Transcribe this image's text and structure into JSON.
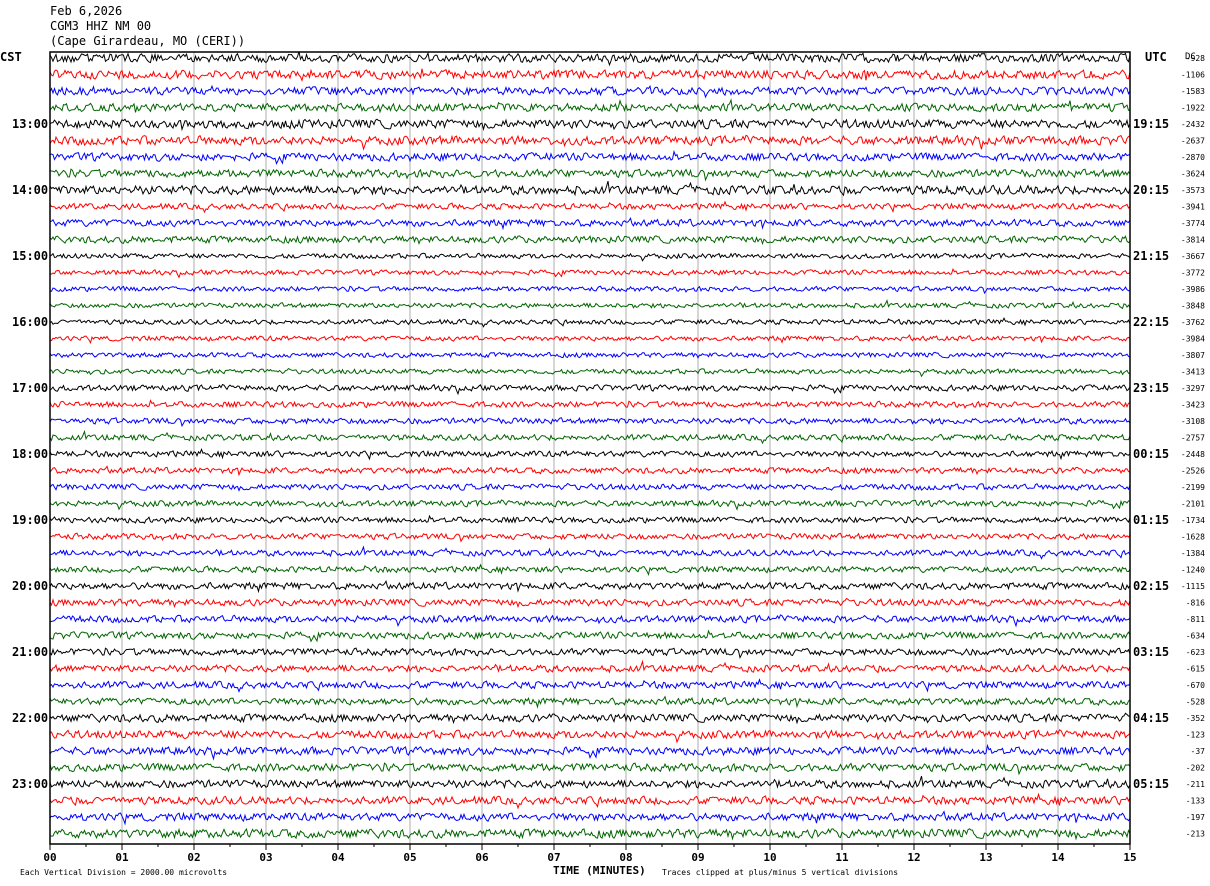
{
  "header": {
    "date": "Feb 6,2026",
    "station": "CGM3 HHZ NM 00",
    "location": "(Cape Girardeau, MO (CERI))"
  },
  "footer": {
    "scale_note": "Each Vertical Division = 2000.00 microvolts",
    "clip_note": "Traces clipped at plus/minus 5 vertical divisions"
  },
  "chart_data": {
    "type": "line",
    "title": "",
    "xlabel": "TIME (MINUTES)",
    "ylabel": "",
    "left_axis_label": "CST",
    "right_axis_label": "UTC",
    "dc_header": "DC",
    "xlim": [
      0,
      15
    ],
    "x_ticks": [
      "00",
      "01",
      "02",
      "03",
      "04",
      "05",
      "06",
      "07",
      "08",
      "09",
      "10",
      "11",
      "12",
      "13",
      "14",
      "15"
    ],
    "left_hour_labels": [
      "13:00",
      "14:00",
      "15:00",
      "16:00",
      "17:00",
      "18:00",
      "19:00",
      "20:00",
      "21:00",
      "22:00",
      "23:00"
    ],
    "right_hour_labels": [
      "19:15",
      "20:15",
      "21:15",
      "22:15",
      "23:15",
      "00:15",
      "01:15",
      "02:15",
      "03:15",
      "04:15",
      "05:15"
    ],
    "trace_colors": [
      "#000000",
      "#ff0000",
      "#0000ff",
      "#006400"
    ],
    "trace_dc_offsets": [
      "-928",
      "-1106",
      "-1583",
      "-1922",
      "-2432",
      "-2637",
      "-2870",
      "-3624",
      "-3573",
      "-3941",
      "-3774",
      "-3814",
      "-3667",
      "-3772",
      "-3986",
      "-3848",
      "-3762",
      "-3984",
      "-3807",
      "-3413",
      "-3297",
      "-3423",
      "-3108",
      "-2757",
      "-2448",
      "-2526",
      "-2199",
      "-2101",
      "-1734",
      "-1628",
      "-1384",
      "-1240",
      "-1115",
      "-816",
      "-811",
      "-634",
      "-623",
      "-615",
      "-670",
      "-528",
      "-352",
      "-123",
      "-37",
      "-202",
      "-211",
      "-133",
      "-197",
      "-213"
    ],
    "trace_amplitude_divisions": [
      0.45,
      0.45,
      0.4,
      0.4,
      0.45,
      0.45,
      0.4,
      0.4,
      0.45,
      0.3,
      0.35,
      0.35,
      0.25,
      0.25,
      0.25,
      0.25,
      0.25,
      0.25,
      0.25,
      0.25,
      0.3,
      0.3,
      0.3,
      0.3,
      0.3,
      0.3,
      0.3,
      0.3,
      0.3,
      0.3,
      0.3,
      0.3,
      0.35,
      0.35,
      0.35,
      0.35,
      0.35,
      0.35,
      0.35,
      0.35,
      0.4,
      0.4,
      0.4,
      0.4,
      0.4,
      0.4,
      0.4,
      0.45
    ],
    "grid": true
  }
}
